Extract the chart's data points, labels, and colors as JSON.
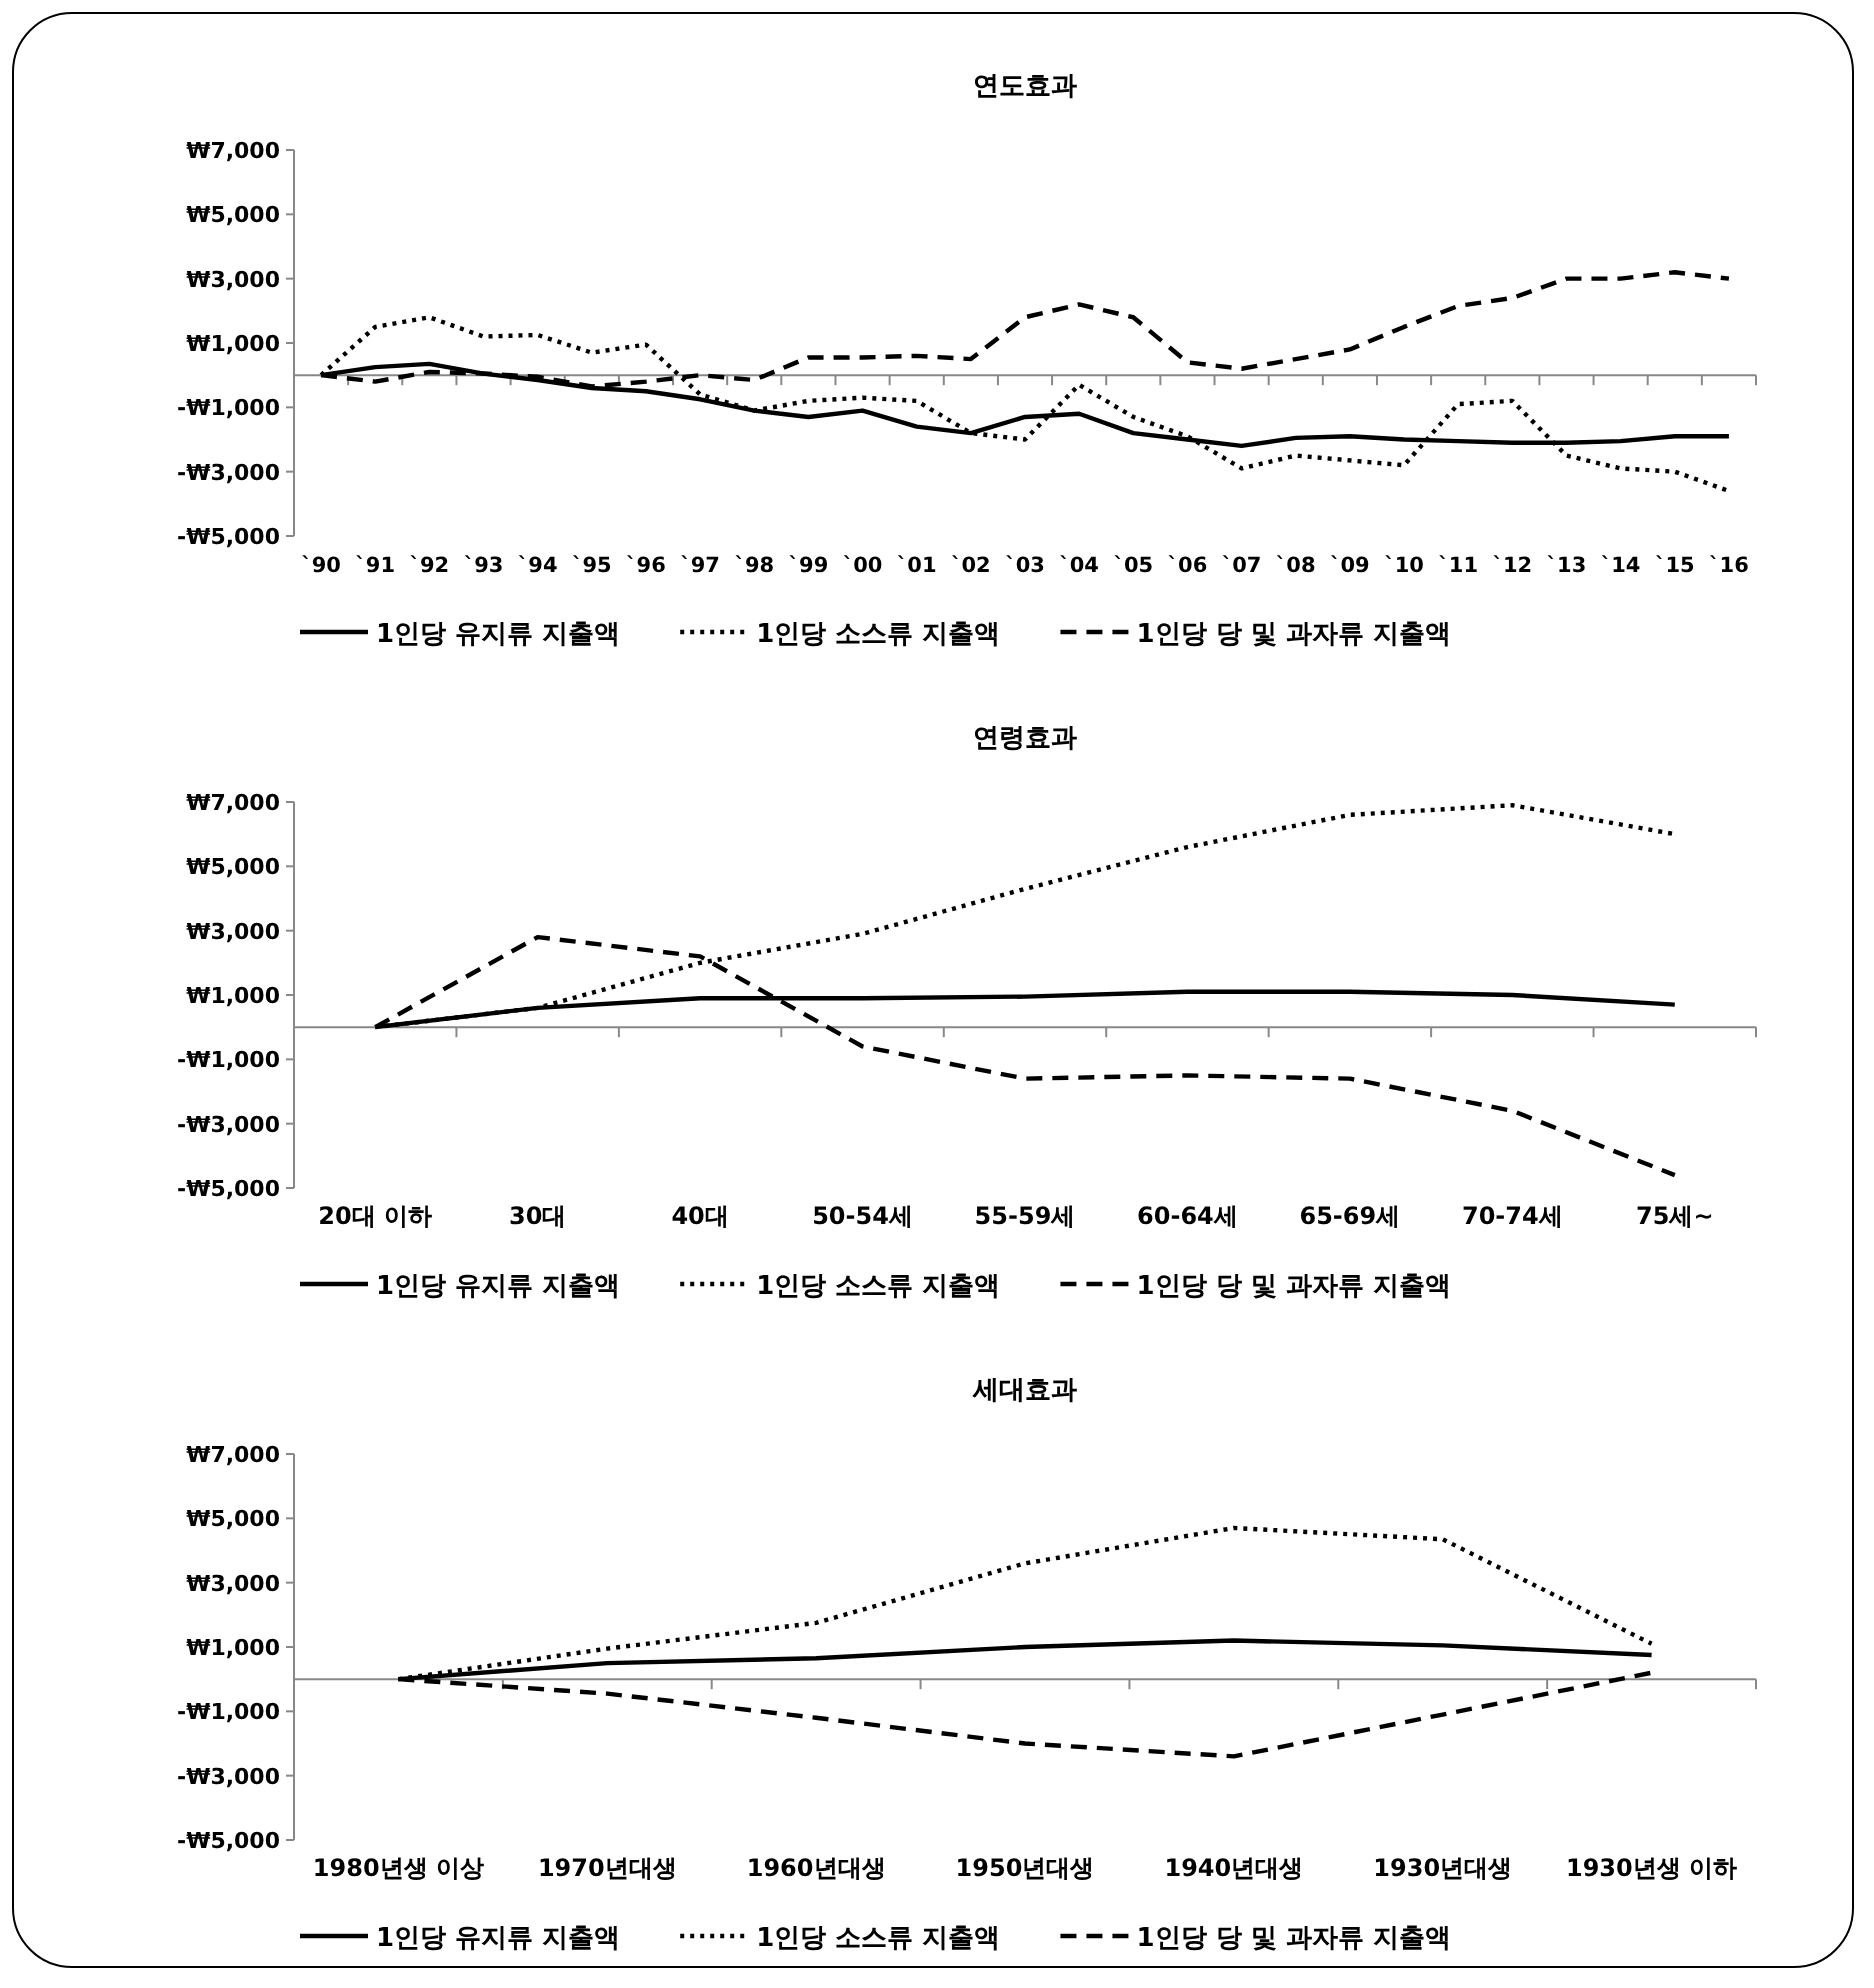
{
  "chart_data": [
    {
      "type": "line",
      "title": "연도효과",
      "categories": [
        "`90",
        "`91",
        "`92",
        "`93",
        "`94",
        "`95",
        "`96",
        "`97",
        "`98",
        "`99",
        "`00",
        "`01",
        "`02",
        "`03",
        "`04",
        "`05",
        "`06",
        "`07",
        "`08",
        "`09",
        "`10",
        "`11",
        "`12",
        "`13",
        "`14",
        "`15",
        "`16"
      ],
      "ylim": [
        -5000,
        7000
      ],
      "yticks": [
        {
          "value": -5000,
          "label": "-₩5,000"
        },
        {
          "value": -3000,
          "label": "-₩3,000"
        },
        {
          "value": -1000,
          "label": "-₩1,000"
        },
        {
          "value": 1000,
          "label": "₩1,000"
        },
        {
          "value": 3000,
          "label": "₩3,000"
        },
        {
          "value": 5000,
          "label": "₩5,000"
        },
        {
          "value": 7000,
          "label": "₩7,000"
        }
      ],
      "legend": "bottom",
      "grid": false,
      "series": [
        {
          "name": "1인당 유지류 지출액",
          "color": "#000000",
          "line_style": "solid",
          "values": [
            0,
            250,
            350,
            50,
            -150,
            -400,
            -500,
            -750,
            -1100,
            -1300,
            -1100,
            -1600,
            -1800,
            -1300,
            -1200,
            -1800,
            -2000,
            -2200,
            -1950,
            -1900,
            -2000,
            -2050,
            -2100,
            -2100,
            -2050,
            -1900,
            -1900
          ]
        },
        {
          "name": "1인당 소스류 지출액",
          "color": "#000000",
          "line_style": "dotted",
          "values": [
            0,
            1500,
            1800,
            1200,
            1250,
            700,
            950,
            -600,
            -1100,
            -800,
            -700,
            -800,
            -1800,
            -2000,
            -300,
            -1300,
            -1900,
            -2900,
            -2500,
            -2650,
            -2800,
            -900,
            -800,
            -2500,
            -2900,
            -3000,
            -3600
          ]
        },
        {
          "name": "1인당 당 및 과자류 지출액",
          "color": "#000000",
          "line_style": "dashed",
          "values": [
            0,
            -200,
            100,
            50,
            -50,
            -350,
            -200,
            0,
            -150,
            550,
            550,
            600,
            500,
            1800,
            2200,
            1800,
            400,
            200,
            500,
            800,
            1500,
            2150,
            2400,
            3000,
            3000,
            3200,
            3000
          ]
        }
      ]
    },
    {
      "type": "line",
      "title": "연령효과",
      "categories": [
        "20대 이하",
        "30대",
        "40대",
        "50-54세",
        "55-59세",
        "60-64세",
        "65-69세",
        "70-74세",
        "75세~"
      ],
      "ylim": [
        -5000,
        7000
      ],
      "yticks": [
        {
          "value": -5000,
          "label": "-₩5,000"
        },
        {
          "value": -3000,
          "label": "-₩3,000"
        },
        {
          "value": -1000,
          "label": "-₩1,000"
        },
        {
          "value": 1000,
          "label": "₩1,000"
        },
        {
          "value": 3000,
          "label": "₩3,000"
        },
        {
          "value": 5000,
          "label": "₩5,000"
        },
        {
          "value": 7000,
          "label": "₩7,000"
        }
      ],
      "legend": "bottom",
      "grid": false,
      "series": [
        {
          "name": "1인당 유지류 지출액",
          "color": "#000000",
          "line_style": "solid",
          "values": [
            0,
            600,
            900,
            900,
            950,
            1100,
            1100,
            1000,
            700
          ]
        },
        {
          "name": "1인당 소스류 지출액",
          "color": "#000000",
          "line_style": "dotted",
          "values": [
            0,
            600,
            2000,
            2900,
            4300,
            5600,
            6600,
            6900,
            6000
          ]
        },
        {
          "name": "1인당 당 및 과자류 지출액",
          "color": "#000000",
          "line_style": "dashed",
          "values": [
            0,
            2800,
            2200,
            -600,
            -1600,
            -1500,
            -1600,
            -2600,
            -4600
          ]
        }
      ]
    },
    {
      "type": "line",
      "title": "세대효과",
      "categories": [
        "1980년생 이상",
        "1970년대생",
        "1960년대생",
        "1950년대생",
        "1940년대생",
        "1930년대생",
        "1930년생 이하"
      ],
      "ylim": [
        -5000,
        7000
      ],
      "yticks": [
        {
          "value": -5000,
          "label": "-₩5,000"
        },
        {
          "value": -3000,
          "label": "-₩3,000"
        },
        {
          "value": -1000,
          "label": "-₩1,000"
        },
        {
          "value": 1000,
          "label": "₩1,000"
        },
        {
          "value": 3000,
          "label": "₩3,000"
        },
        {
          "value": 5000,
          "label": "₩5,000"
        },
        {
          "value": 7000,
          "label": "₩7,000"
        }
      ],
      "legend": "bottom",
      "grid": false,
      "series": [
        {
          "name": "1인당 유지류 지출액",
          "color": "#000000",
          "line_style": "solid",
          "values": [
            0,
            500,
            650,
            1000,
            1200,
            1050,
            750
          ]
        },
        {
          "name": "1인당 소스류 지출액",
          "color": "#000000",
          "line_style": "dotted",
          "values": [
            0,
            950,
            1750,
            3600,
            4700,
            4350,
            1100
          ]
        },
        {
          "name": "1인당 당 및 과자류 지출액",
          "color": "#000000",
          "line_style": "dashed",
          "values": [
            0,
            -450,
            -1200,
            -2000,
            -2400,
            -1100,
            200
          ]
        }
      ]
    }
  ]
}
